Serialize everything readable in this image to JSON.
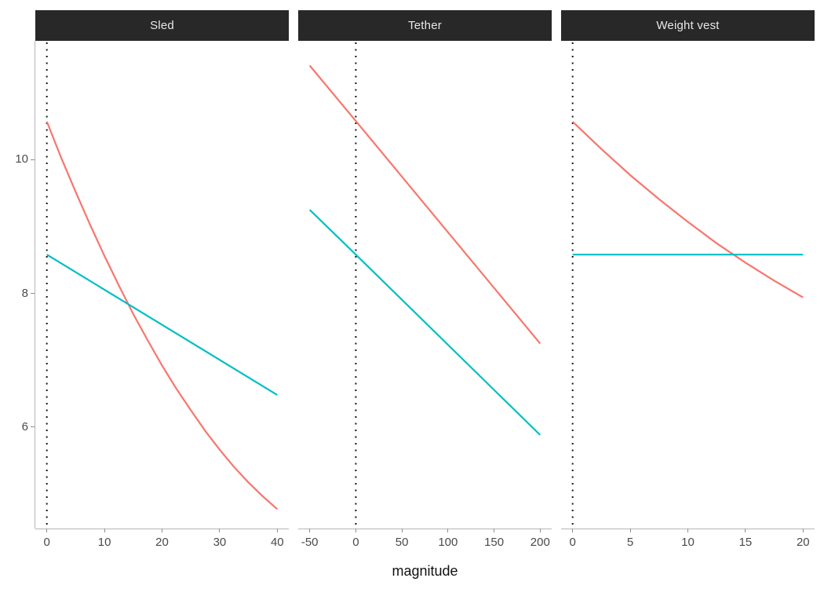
{
  "chart_data": {
    "type": "line",
    "xlabel": "magnitude",
    "ylabel": "",
    "y_ticks": [
      6,
      8,
      10
    ],
    "ylim": [
      4.48,
      11.78
    ],
    "grid": "off",
    "legend": "none",
    "colors": {
      "red_line": "#F8766D",
      "teal_line": "#00BFC4",
      "strip_bg": "#282828",
      "strip_text": "#E8E8E8",
      "axis_line": "#B5B5B5",
      "tick_mark": "#8F8F8F",
      "tick_text": "#4A4A4A",
      "reference_line": "#141414"
    },
    "facets": [
      {
        "label": "Sled",
        "xlim": [
          0,
          40
        ],
        "x_ticks": [
          0,
          10,
          20,
          30,
          40
        ],
        "reference_line_x": 0,
        "series": [
          {
            "name": "red",
            "color": "#F8766D",
            "points": [
              [
                0,
                10.57
              ],
              [
                2.5,
                10.03
              ],
              [
                5,
                9.52
              ],
              [
                7.5,
                9.03
              ],
              [
                10,
                8.56
              ],
              [
                12.5,
                8.12
              ],
              [
                15,
                7.69
              ],
              [
                17.5,
                7.3
              ],
              [
                20,
                6.92
              ],
              [
                22.5,
                6.57
              ],
              [
                25,
                6.25
              ],
              [
                27.5,
                5.94
              ],
              [
                30,
                5.66
              ],
              [
                32.5,
                5.4
              ],
              [
                35,
                5.17
              ],
              [
                37.5,
                4.96
              ],
              [
                40,
                4.77
              ]
            ]
          },
          {
            "name": "teal",
            "color": "#00BFC4",
            "points": [
              [
                0,
                8.58
              ],
              [
                40,
                6.48
              ]
            ]
          }
        ]
      },
      {
        "label": "Tether",
        "xlim": [
          -50,
          200
        ],
        "x_ticks": [
          -50,
          0,
          50,
          100,
          150,
          200
        ],
        "reference_line_x": 0,
        "series": [
          {
            "name": "red",
            "color": "#F8766D",
            "points": [
              [
                -50,
                11.41
              ],
              [
                0,
                10.58
              ],
              [
                200,
                7.25
              ]
            ]
          },
          {
            "name": "teal",
            "color": "#00BFC4",
            "points": [
              [
                -50,
                9.25
              ],
              [
                0,
                8.58
              ],
              [
                200,
                5.88
              ]
            ]
          }
        ]
      },
      {
        "label": "Weight vest",
        "xlim": [
          0,
          20
        ],
        "x_ticks": [
          0,
          5,
          10,
          15,
          20
        ],
        "reference_line_x": 0,
        "series": [
          {
            "name": "red",
            "color": "#F8766D",
            "points": [
              [
                0,
                10.57
              ],
              [
                2.5,
                10.16
              ],
              [
                5,
                9.77
              ],
              [
                7.5,
                9.41
              ],
              [
                10,
                9.07
              ],
              [
                12.5,
                8.75
              ],
              [
                15,
                8.46
              ],
              [
                17.5,
                8.19
              ],
              [
                20,
                7.94
              ]
            ]
          },
          {
            "name": "teal",
            "color": "#00BFC4",
            "points": [
              [
                0,
                8.58
              ],
              [
                20,
                8.58
              ]
            ]
          }
        ]
      }
    ]
  }
}
